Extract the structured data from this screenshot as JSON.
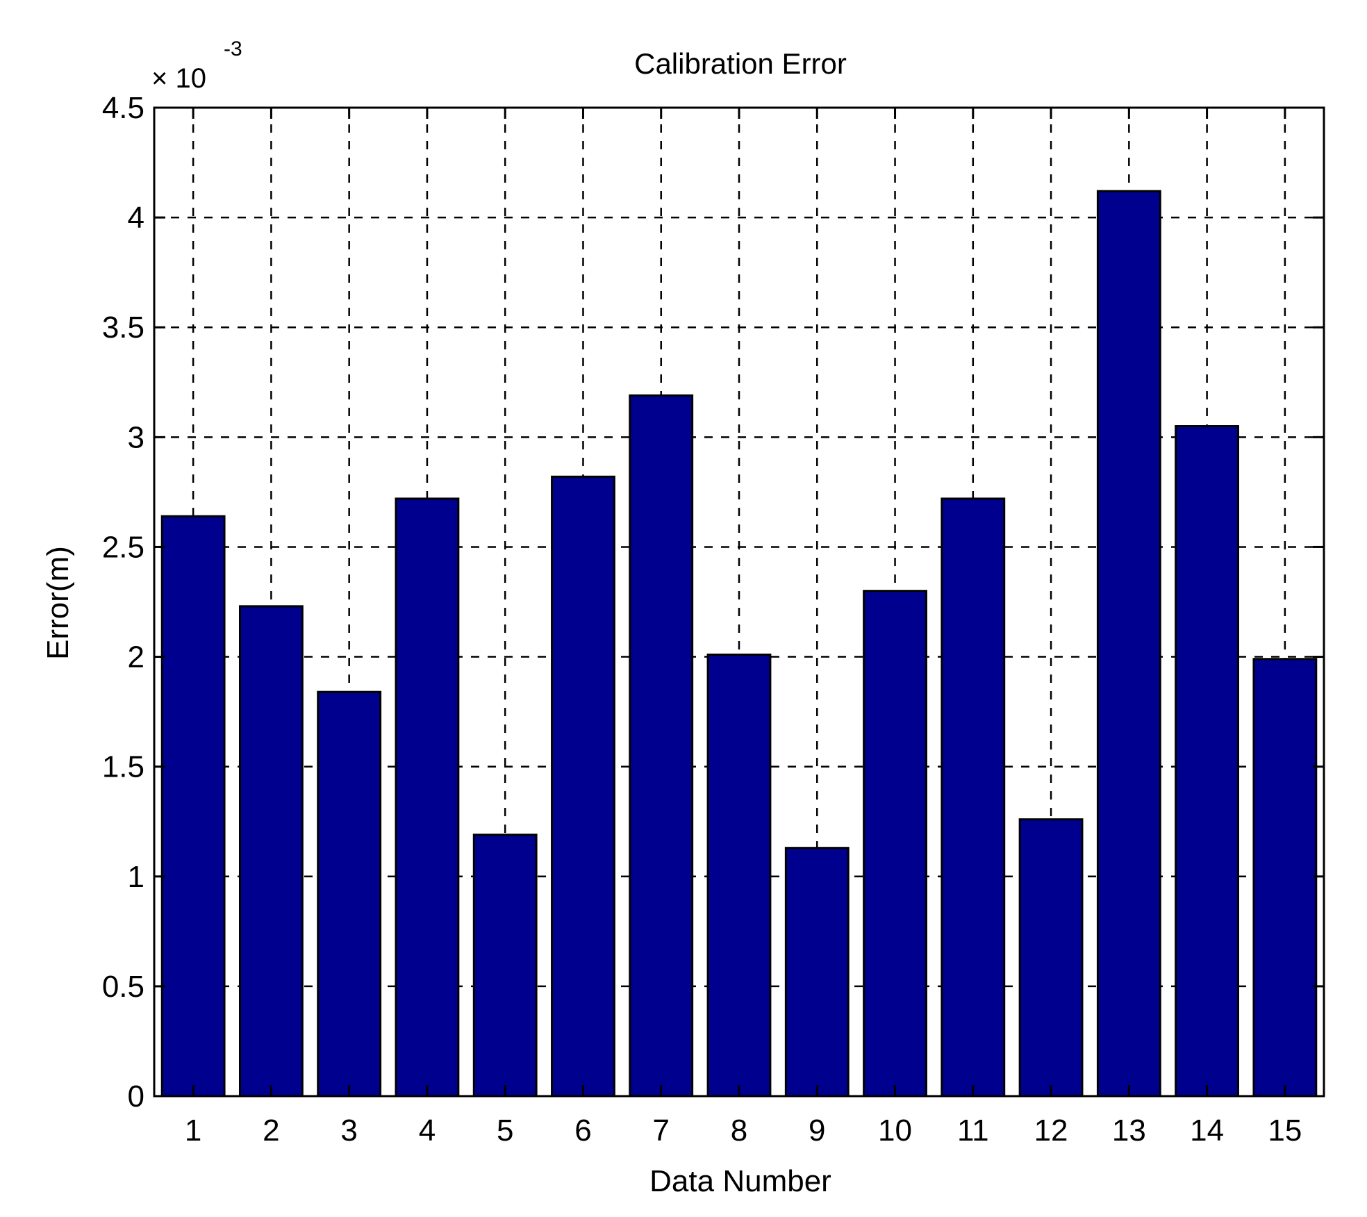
{
  "chart_data": {
    "type": "bar",
    "title": "Calibration Error",
    "xlabel": "Data Number",
    "ylabel": "Error(m)",
    "y_multiplier": {
      "base": "× 10",
      "exponent": "-3"
    },
    "categories": [
      "1",
      "2",
      "3",
      "4",
      "5",
      "6",
      "7",
      "8",
      "9",
      "10",
      "11",
      "12",
      "13",
      "14",
      "15"
    ],
    "values": [
      2.64,
      2.23,
      1.84,
      2.72,
      1.19,
      2.82,
      3.19,
      2.01,
      1.13,
      2.3,
      2.72,
      1.26,
      4.12,
      3.05,
      1.99
    ],
    "xlim": [
      0.5,
      15.5
    ],
    "ylim": [
      0,
      4.5
    ],
    "y_ticks": [
      "0",
      "0.5",
      "1",
      "1.5",
      "2",
      "2.5",
      "3",
      "3.5",
      "4",
      "4.5"
    ],
    "grid": true,
    "bar_color": "#00008f"
  }
}
